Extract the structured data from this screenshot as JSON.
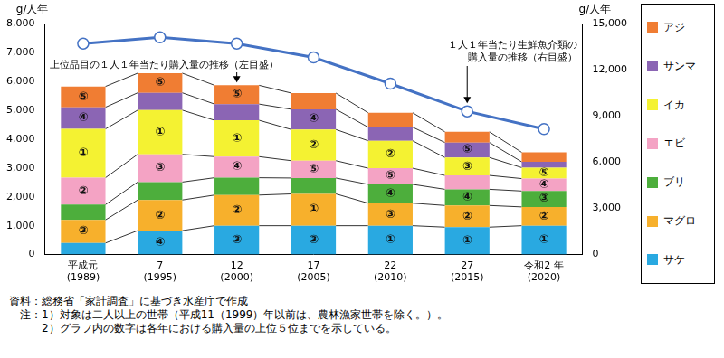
{
  "chart_data": {
    "type": "bar",
    "stacked": true,
    "grid": false,
    "legend": "right",
    "categories": [
      "平成元\n(1989)",
      "7\n(1995)",
      "12\n(2000)",
      "17\n(2005)",
      "22\n(2010)",
      "27\n(2015)",
      "令和2 年\n(2020)"
    ],
    "ylabel": "g/人年",
    "y2label": "g/人年",
    "ylim": [
      0,
      8000
    ],
    "yticks": [
      0,
      {
        "value": 1000,
        "label": "1,000"
      },
      {
        "value": 2000,
        "label": "2,000"
      },
      {
        "value": 3000,
        "label": "3,000"
      },
      {
        "value": 4000,
        "label": "4,000"
      },
      {
        "value": 5000,
        "label": "5,000"
      },
      {
        "value": 6000,
        "label": "6,000"
      },
      {
        "value": 7000,
        "label": "7,000"
      },
      {
        "value": 8000,
        "label": "8,000"
      }
    ],
    "y2lim": [
      0,
      15000
    ],
    "y2ticks": [
      0,
      {
        "value": 3000,
        "label": "3,000"
      },
      {
        "value": 6000,
        "label": "6,000"
      },
      {
        "value": 9000,
        "label": "9,000"
      },
      {
        "value": 12000,
        "label": "12,000"
      },
      {
        "value": 15000,
        "label": "15,000"
      }
    ],
    "annotations": [
      {
        "text": "上位品目の１人１年当たり購入量の推移（左目盛）"
      }
    ],
    "series": [
      {
        "name": "サケ",
        "color": "#29a9e1",
        "values": [
          400,
          830,
          1000,
          1000,
          1000,
          950,
          1000
        ],
        "rank_labels": [
          null,
          "④",
          "③",
          "③",
          "①",
          "①",
          "①"
        ]
      },
      {
        "name": "マグロ",
        "color": "#f7b02c",
        "values": [
          800,
          1060,
          1060,
          1100,
          780,
          750,
          650
        ],
        "rank_labels": [
          "③",
          "②",
          "②",
          "①",
          "③",
          "②",
          "②"
        ]
      },
      {
        "name": "ブリ",
        "color": "#4dae3c",
        "values": [
          530,
          620,
          600,
          550,
          650,
          560,
          550
        ],
        "rank_labels": [
          null,
          null,
          null,
          null,
          "④",
          "④",
          "③"
        ]
      },
      {
        "name": "エビ",
        "color": "#f4a3c4",
        "values": [
          930,
          960,
          730,
          600,
          560,
          480,
          430
        ],
        "rank_labels": [
          "②",
          "③",
          "④",
          "⑤",
          "⑤",
          null,
          "④"
        ]
      },
      {
        "name": "イカ",
        "color": "#f4f232",
        "values": [
          1690,
          1530,
          1260,
          1080,
          950,
          620,
          380
        ],
        "rank_labels": [
          "①",
          "①",
          "①",
          "②",
          "②",
          "③",
          "⑤"
        ]
      },
      {
        "name": "サンマ",
        "color": "#8b65b4",
        "values": [
          750,
          600,
          560,
          700,
          470,
          520,
          200
        ],
        "rank_labels": [
          "④",
          null,
          null,
          "④",
          null,
          "⑤",
          null
        ]
      },
      {
        "name": "アジ",
        "color": "#f07d33",
        "values": [
          720,
          680,
          650,
          560,
          500,
          370,
          330
        ],
        "rank_labels": [
          "⑤",
          "⑤",
          "⑤",
          null,
          null,
          null,
          null
        ]
      },
      {
        "name": "１人１年当たり生鮮魚介類の購入量の推移（右目盛）",
        "type": "line",
        "axis": "y2",
        "color": "#4472c4",
        "marker": "circle",
        "values": [
          13700,
          14100,
          13700,
          12800,
          11100,
          9300,
          8150
        ]
      }
    ],
    "notes": [
      "資料：総務省「家計調査」に基づき水産庁で作成",
      "　注：1）対象は二人以上の世帯（平成11（1999）年以前は、農林漁家世帯を除く。）。",
      "　　　2）グラフ内の数字は各年における購入量の上位５位までを示している。"
    ]
  }
}
